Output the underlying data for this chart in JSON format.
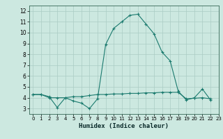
{
  "title": "",
  "xlabel": "Humidex (Indice chaleur)",
  "bg_color": "#cce8e0",
  "grid_color": "#aaccc4",
  "line_color": "#1a7a6e",
  "series1_x": [
    0,
    1,
    2,
    3,
    4,
    5,
    6,
    7,
    8,
    9,
    10,
    11,
    12,
    13,
    14,
    15,
    16,
    17,
    18,
    19,
    20,
    21,
    22
  ],
  "series1_y": [
    4.3,
    4.3,
    4.1,
    3.1,
    4.0,
    3.7,
    3.5,
    3.0,
    3.9,
    8.9,
    10.4,
    11.0,
    11.6,
    11.7,
    10.8,
    9.9,
    8.2,
    7.4,
    4.6,
    3.8,
    4.0,
    4.8,
    3.8
  ],
  "series2_x": [
    0,
    1,
    2,
    3,
    4,
    5,
    6,
    7,
    8,
    9,
    10,
    11,
    12,
    13,
    14,
    15,
    16,
    17,
    18,
    19,
    20,
    21,
    22
  ],
  "series2_y": [
    4.3,
    4.3,
    4.0,
    4.0,
    4.0,
    4.1,
    4.1,
    4.2,
    4.3,
    4.3,
    4.35,
    4.35,
    4.4,
    4.4,
    4.45,
    4.45,
    4.5,
    4.5,
    4.5,
    3.9,
    3.95,
    4.0,
    3.9
  ],
  "ylim": [
    2.5,
    12.5
  ],
  "xlim": [
    -0.5,
    23.0
  ],
  "yticks": [
    3,
    4,
    5,
    6,
    7,
    8,
    9,
    10,
    11,
    12
  ],
  "xticks": [
    0,
    1,
    2,
    3,
    4,
    5,
    6,
    7,
    8,
    9,
    10,
    11,
    12,
    13,
    14,
    15,
    16,
    17,
    18,
    19,
    20,
    21,
    22,
    23
  ]
}
